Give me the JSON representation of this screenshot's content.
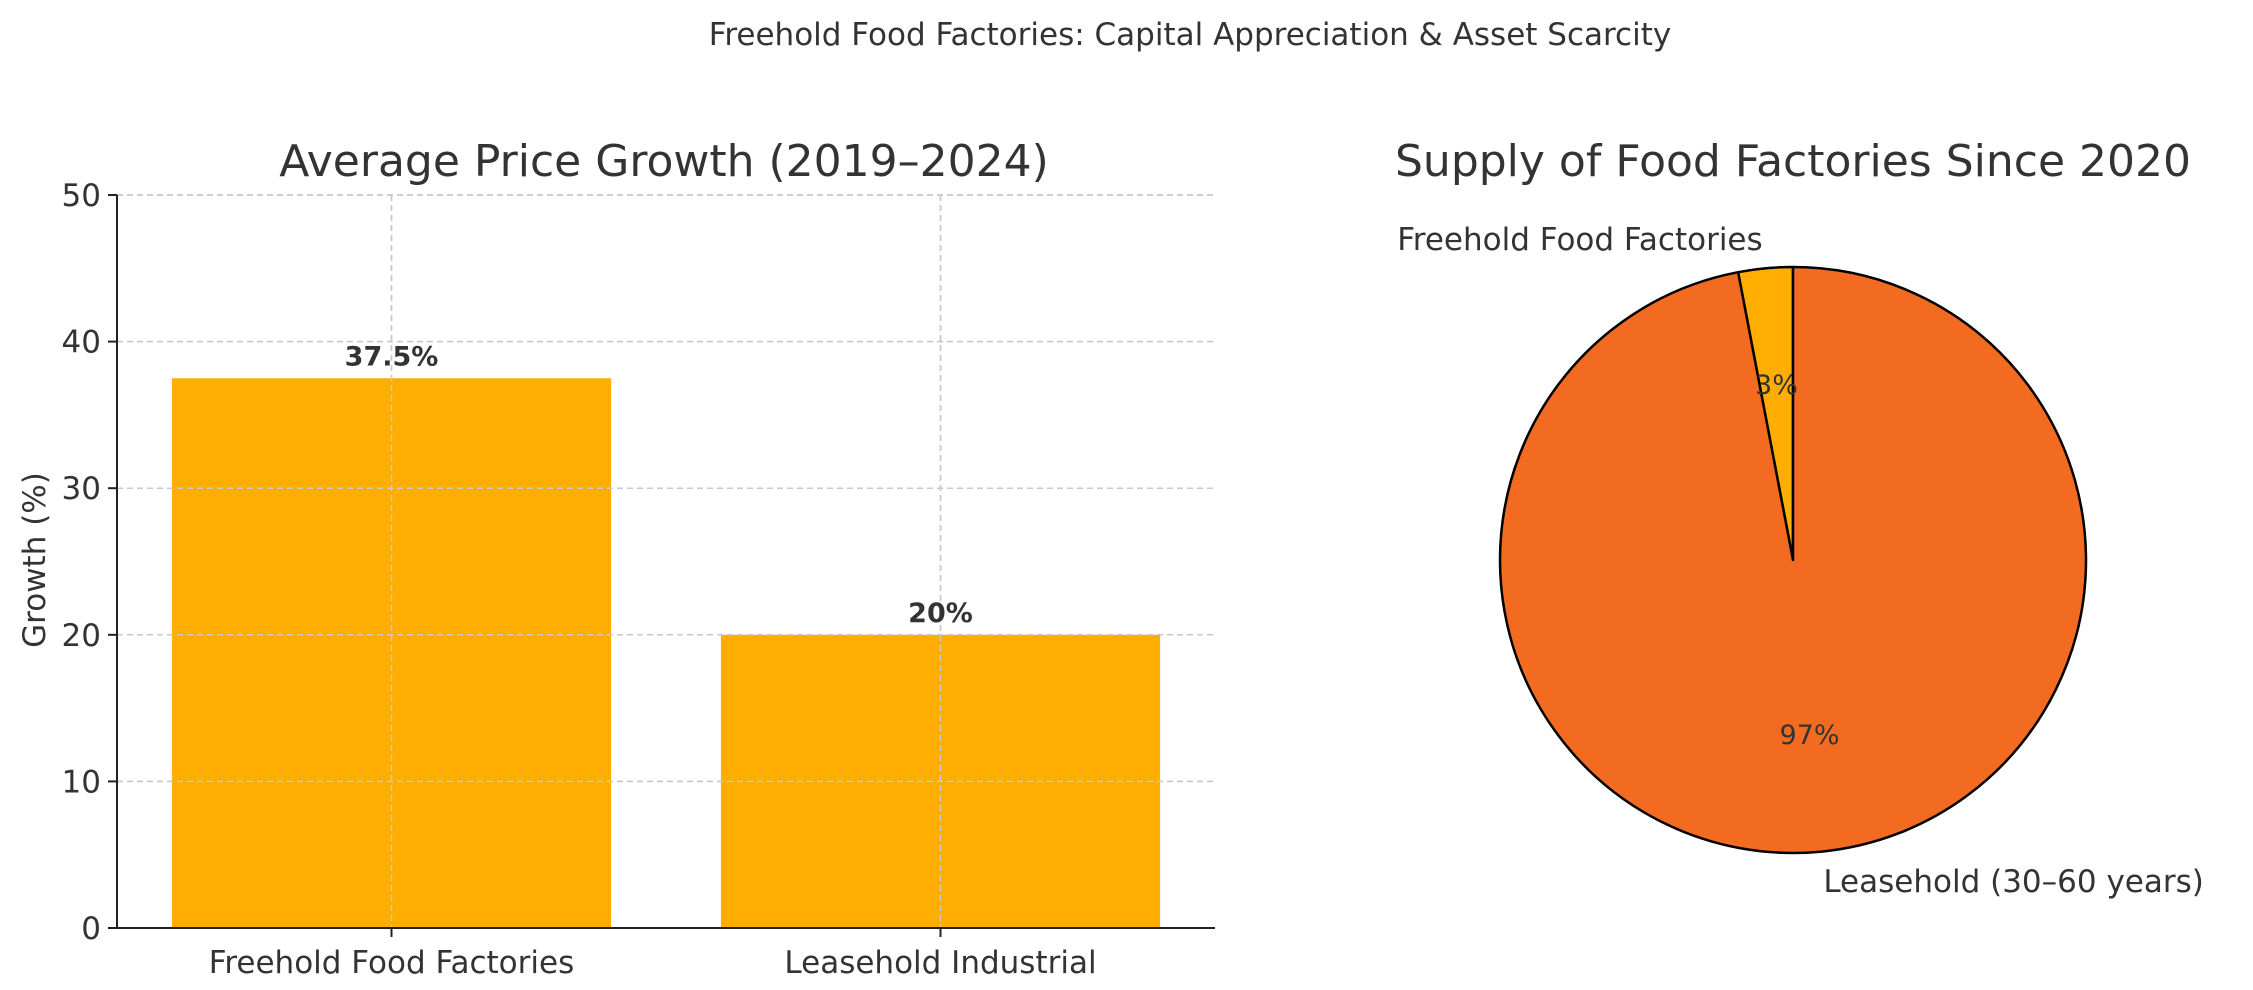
{
  "figure": {
    "suptitle": "Freehold Food Factories: Capital Appreciation & Asset Scarcity"
  },
  "chart_data": [
    {
      "type": "bar",
      "title": "Average Price Growth (2019–2024)",
      "xlabel": "",
      "ylabel": "Growth (%)",
      "categories": [
        "Freehold Food Factories",
        "Leasehold Industrial"
      ],
      "values": [
        37.5,
        20
      ],
      "value_labels": [
        "37.5%",
        "20%"
      ],
      "ylim": [
        0,
        50
      ],
      "yticks": [
        0,
        10,
        20,
        30,
        40,
        50
      ],
      "ytick_labels": [
        "0",
        "10",
        "20",
        "30",
        "40",
        "50"
      ],
      "grid": true,
      "colors": [
        "#FFAE00",
        "#FFAE00"
      ]
    },
    {
      "type": "pie",
      "title": "Supply of Food Factories Since 2020",
      "labels": [
        "Freehold Food Factories",
        "Leasehold (30–60 years)"
      ],
      "values": [
        3,
        97
      ],
      "pct_labels": [
        "3%",
        "97%"
      ],
      "colors": [
        "#FFAE00",
        "#F36B21"
      ],
      "start_angle_deg": 90,
      "direction": "counterclockwise"
    }
  ]
}
